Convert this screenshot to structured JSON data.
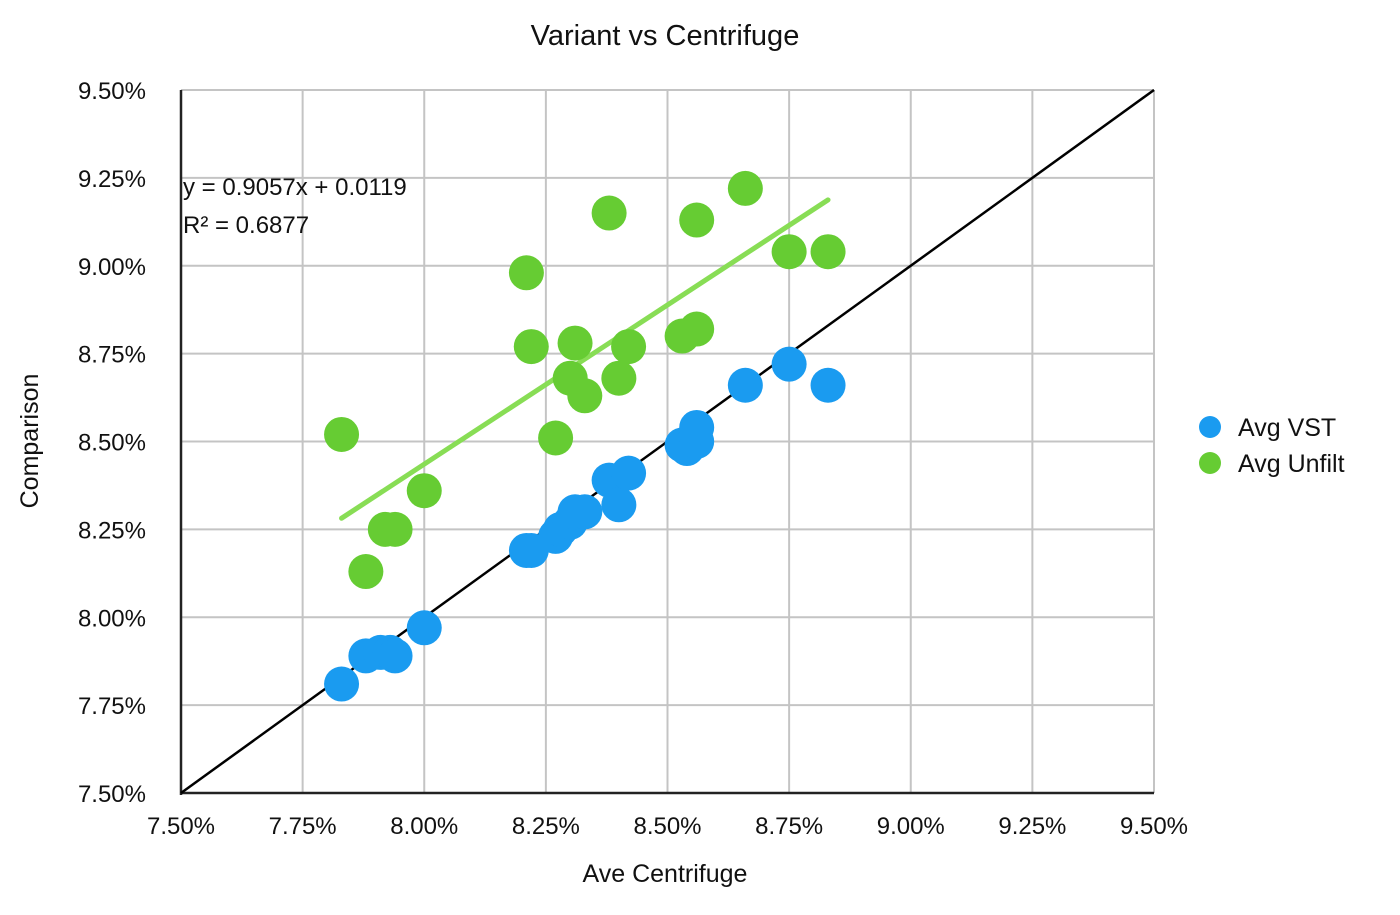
{
  "chart_data": {
    "type": "scatter",
    "title": "Variant vs Centrifuge",
    "xlabel": "Ave Centrifuge",
    "ylabel": "Comparison",
    "xlim": [
      0.075,
      0.095
    ],
    "ylim": [
      0.075,
      0.095
    ],
    "x_ticks": [
      "7.50%",
      "7.75%",
      "8.00%",
      "8.25%",
      "8.50%",
      "8.75%",
      "9.00%",
      "9.25%",
      "9.50%"
    ],
    "y_ticks": [
      "7.50%",
      "7.75%",
      "8.00%",
      "8.25%",
      "8.50%",
      "8.75%",
      "9.00%",
      "9.25%",
      "9.50%"
    ],
    "grid": true,
    "legend_position": "right",
    "series": [
      {
        "name": "Avg VST",
        "color": "#1a9bf0",
        "points": [
          [
            0.0783,
            0.0781
          ],
          [
            0.0788,
            0.0789
          ],
          [
            0.0791,
            0.079
          ],
          [
            0.0793,
            0.079
          ],
          [
            0.0794,
            0.0789
          ],
          [
            0.08,
            0.0797
          ],
          [
            0.0821,
            0.0819
          ],
          [
            0.0822,
            0.0819
          ],
          [
            0.0827,
            0.0823
          ],
          [
            0.0828,
            0.0825
          ],
          [
            0.083,
            0.0827
          ],
          [
            0.0831,
            0.083
          ],
          [
            0.0833,
            0.083
          ],
          [
            0.0838,
            0.0839
          ],
          [
            0.084,
            0.0832
          ],
          [
            0.0842,
            0.0841
          ],
          [
            0.0853,
            0.0849
          ],
          [
            0.0854,
            0.0848
          ],
          [
            0.0856,
            0.085
          ],
          [
            0.0856,
            0.0854
          ],
          [
            0.0866,
            0.0866
          ],
          [
            0.0875,
            0.0872
          ],
          [
            0.0883,
            0.0866
          ]
        ]
      },
      {
        "name": "Avg Unfilt",
        "color": "#66cc33",
        "points": [
          [
            0.0783,
            0.0852
          ],
          [
            0.0788,
            0.0813
          ],
          [
            0.0792,
            0.0825
          ],
          [
            0.0794,
            0.0825
          ],
          [
            0.08,
            0.0836
          ],
          [
            0.0821,
            0.0898
          ],
          [
            0.0822,
            0.0877
          ],
          [
            0.0827,
            0.0851
          ],
          [
            0.083,
            0.0868
          ],
          [
            0.0831,
            0.0878
          ],
          [
            0.0833,
            0.0863
          ],
          [
            0.0838,
            0.0915
          ],
          [
            0.084,
            0.0868
          ],
          [
            0.0842,
            0.0877
          ],
          [
            0.0853,
            0.088
          ],
          [
            0.0856,
            0.0882
          ],
          [
            0.0856,
            0.0913
          ],
          [
            0.0866,
            0.0922
          ],
          [
            0.0875,
            0.0904
          ],
          [
            0.0883,
            0.0904
          ]
        ]
      }
    ],
    "trendline": {
      "series": "Avg Unfilt",
      "slope": 0.9057,
      "intercept": 0.0119,
      "x_range": [
        0.0783,
        0.0883
      ],
      "color": "#88dd55",
      "equation": "y = 0.9057x + 0.0119",
      "r_squared": "R² = 0.6877"
    },
    "reference_line": {
      "from": [
        0.075,
        0.075
      ],
      "to": [
        0.095,
        0.095
      ],
      "color": "#000000"
    }
  }
}
